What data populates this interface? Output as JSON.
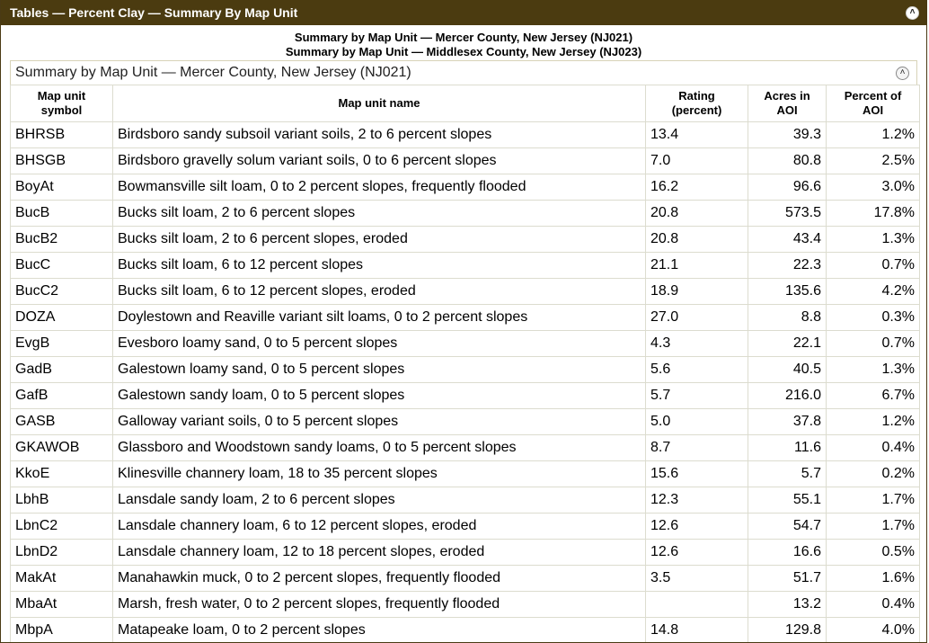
{
  "titlebar": {
    "title": "Tables — Percent Clay — Summary By Map Unit"
  },
  "header": {
    "line1": "Summary by Map Unit — Mercer County, New Jersey (NJ021)",
    "line2": "Summary by Map Unit — Middlesex County, New Jersey (NJ023)"
  },
  "section": {
    "title": "Summary by Map Unit — Mercer County, New Jersey (NJ021)"
  },
  "table": {
    "columns": {
      "symbol": "Map unit symbol",
      "name": "Map unit name",
      "rating": "Rating (percent)",
      "acres": "Acres in AOI",
      "percent": "Percent of AOI"
    },
    "rows": [
      {
        "symbol": "BHRSB",
        "name": "Birdsboro sandy subsoil variant soils, 2 to 6 percent slopes",
        "rating": "13.4",
        "acres": "39.3",
        "percent": "1.2%"
      },
      {
        "symbol": "BHSGB",
        "name": "Birdsboro gravelly solum variant soils, 0 to 6 percent slopes",
        "rating": "7.0",
        "acres": "80.8",
        "percent": "2.5%"
      },
      {
        "symbol": "BoyAt",
        "name": "Bowmansville silt loam, 0 to 2 percent slopes, frequently flooded",
        "rating": "16.2",
        "acres": "96.6",
        "percent": "3.0%"
      },
      {
        "symbol": "BucB",
        "name": "Bucks silt loam, 2 to 6 percent slopes",
        "rating": "20.8",
        "acres": "573.5",
        "percent": "17.8%"
      },
      {
        "symbol": "BucB2",
        "name": "Bucks silt loam, 2 to 6 percent slopes, eroded",
        "rating": "20.8",
        "acres": "43.4",
        "percent": "1.3%"
      },
      {
        "symbol": "BucC",
        "name": "Bucks silt loam, 6 to 12 percent slopes",
        "rating": "21.1",
        "acres": "22.3",
        "percent": "0.7%"
      },
      {
        "symbol": "BucC2",
        "name": "Bucks silt loam, 6 to 12 percent slopes, eroded",
        "rating": "18.9",
        "acres": "135.6",
        "percent": "4.2%"
      },
      {
        "symbol": "DOZA",
        "name": "Doylestown and Reaville variant silt loams, 0 to 2 percent slopes",
        "rating": "27.0",
        "acres": "8.8",
        "percent": "0.3%"
      },
      {
        "symbol": "EvgB",
        "name": "Evesboro loamy sand, 0 to 5 percent slopes",
        "rating": "4.3",
        "acres": "22.1",
        "percent": "0.7%"
      },
      {
        "symbol": "GadB",
        "name": "Galestown loamy sand, 0 to 5 percent slopes",
        "rating": "5.6",
        "acres": "40.5",
        "percent": "1.3%"
      },
      {
        "symbol": "GafB",
        "name": "Galestown sandy loam, 0 to 5 percent slopes",
        "rating": "5.7",
        "acres": "216.0",
        "percent": "6.7%"
      },
      {
        "symbol": "GASB",
        "name": "Galloway variant soils, 0 to 5 percent slopes",
        "rating": "5.0",
        "acres": "37.8",
        "percent": "1.2%"
      },
      {
        "symbol": "GKAWOB",
        "name": "Glassboro and Woodstown sandy loams, 0 to 5 percent slopes",
        "rating": "8.7",
        "acres": "11.6",
        "percent": "0.4%"
      },
      {
        "symbol": "KkoE",
        "name": "Klinesville channery loam, 18 to 35 percent slopes",
        "rating": "15.6",
        "acres": "5.7",
        "percent": "0.2%"
      },
      {
        "symbol": "LbhB",
        "name": "Lansdale sandy loam, 2 to 6 percent slopes",
        "rating": "12.3",
        "acres": "55.1",
        "percent": "1.7%"
      },
      {
        "symbol": "LbnC2",
        "name": "Lansdale channery loam, 6 to 12 percent slopes, eroded",
        "rating": "12.6",
        "acres": "54.7",
        "percent": "1.7%"
      },
      {
        "symbol": "LbnD2",
        "name": "Lansdale channery loam, 12 to 18 percent slopes, eroded",
        "rating": "12.6",
        "acres": "16.6",
        "percent": "0.5%"
      },
      {
        "symbol": "MakAt",
        "name": "Manahawkin muck, 0 to 2 percent slopes, frequently flooded",
        "rating": "3.5",
        "acres": "51.7",
        "percent": "1.6%"
      },
      {
        "symbol": "MbaAt",
        "name": "Marsh, fresh water, 0 to 2 percent slopes, frequently flooded",
        "rating": "",
        "acres": "13.2",
        "percent": "0.4%"
      },
      {
        "symbol": "MbpA",
        "name": "Matapeake loam, 0 to 2 percent slopes",
        "rating": "14.8",
        "acres": "129.8",
        "percent": "4.0%"
      }
    ]
  }
}
